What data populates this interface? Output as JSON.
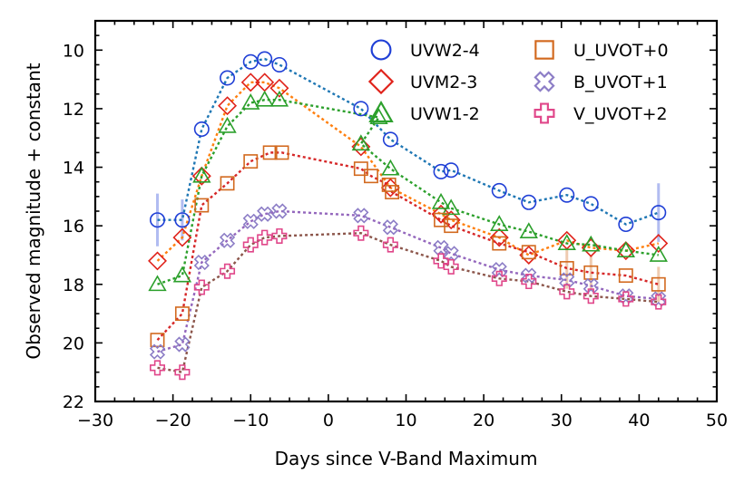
{
  "chart_data": {
    "type": "scatter",
    "title": "",
    "xlabel": "Days since V-Band Maximum",
    "ylabel": "Observed magnitude + constant",
    "xlim": [
      -30,
      50
    ],
    "ylim": [
      22,
      9
    ],
    "y_inverted": true,
    "grid": false,
    "legend_position": "top-right",
    "x_ticks": [
      "−30",
      "−20",
      "−10",
      "0",
      "10",
      "20",
      "30",
      "40",
      "50"
    ],
    "x_tick_values": [
      -30,
      -20,
      -10,
      0,
      10,
      20,
      30,
      40,
      50
    ],
    "y_ticks": [
      "10",
      "12",
      "14",
      "16",
      "18",
      "20",
      "22"
    ],
    "y_tick_values": [
      10,
      12,
      14,
      16,
      18,
      20,
      22
    ],
    "series": [
      {
        "name": "UVW2-4",
        "marker": "circle",
        "color": "#1f3fd6",
        "line_color": "#1f77b4",
        "x": [
          -22.0,
          -18.8,
          -16.3,
          -13.0,
          -10.0,
          -8.2,
          -6.3,
          4.2,
          8.0,
          14.5,
          15.8,
          22.0,
          25.8,
          30.7,
          33.8,
          38.3,
          42.5
        ],
        "y": [
          15.8,
          15.8,
          12.7,
          10.95,
          10.4,
          10.3,
          10.5,
          12.0,
          13.05,
          14.15,
          14.1,
          14.8,
          15.2,
          14.95,
          15.25,
          15.95,
          15.55
        ],
        "err": [
          0.9,
          0.7,
          0,
          0,
          0,
          0,
          0,
          0,
          0,
          0,
          0,
          0,
          0,
          0,
          0,
          0,
          1.0
        ]
      },
      {
        "name": "UVM2-3",
        "marker": "diamond",
        "color": "#e0221a",
        "line_color": "#ff7f0e",
        "x": [
          -22.0,
          -18.8,
          -16.3,
          -13.0,
          -10.0,
          -8.2,
          -6.3,
          4.2,
          8.0,
          14.5,
          15.8,
          22.0,
          25.8,
          30.7,
          33.8,
          38.3,
          42.5
        ],
        "y": [
          17.2,
          16.4,
          14.3,
          11.9,
          11.1,
          11.1,
          11.3,
          13.3,
          14.7,
          15.6,
          15.8,
          16.4,
          17.0,
          16.5,
          16.75,
          16.85,
          16.6
        ],
        "err": [
          0,
          0,
          0,
          0,
          0,
          0,
          0,
          0,
          0,
          0,
          0,
          0,
          0,
          0,
          0,
          0,
          0
        ]
      },
      {
        "name": "UVW1-2",
        "marker": "triangle",
        "color": "#2ca02c",
        "line_color": "#2ca02c",
        "x": [
          -22.0,
          -18.8,
          -16.3,
          -13.0,
          -10.0,
          -8.2,
          -6.3,
          6.5,
          4.2,
          8.0,
          14.5,
          15.8,
          22.0,
          25.8,
          30.7,
          33.8,
          38.3,
          42.5
        ],
        "y": [
          18.0,
          17.7,
          14.3,
          12.6,
          11.8,
          11.7,
          11.7,
          12.3,
          13.2,
          14.05,
          15.2,
          15.4,
          15.95,
          16.2,
          16.6,
          16.65,
          16.85,
          17.0
        ],
        "err": [
          0,
          0,
          0,
          0,
          0,
          0,
          0,
          0,
          0,
          0,
          0,
          0,
          0,
          0,
          0,
          0,
          0,
          0
        ]
      },
      {
        "name": "U_UVOT+0",
        "marker": "square",
        "color": "#d2691e",
        "line_color": "#d62728",
        "x": [
          -22.0,
          -18.8,
          -16.3,
          -13.0,
          -10.0,
          -7.5,
          -6.0,
          4.2,
          5.5,
          7.8,
          8.2,
          14.5,
          15.8,
          22.0,
          25.8,
          30.7,
          33.8,
          38.3,
          42.5
        ],
        "y": [
          19.9,
          19.0,
          15.3,
          14.55,
          13.8,
          13.5,
          13.5,
          14.05,
          14.3,
          14.6,
          14.85,
          15.8,
          16.0,
          16.6,
          16.9,
          17.45,
          17.6,
          17.7,
          18.0
        ],
        "err": [
          0,
          0,
          0,
          0,
          0,
          0,
          0,
          0,
          0,
          0,
          0,
          0,
          0,
          0,
          0,
          0.7,
          0.6,
          0,
          0.6
        ]
      },
      {
        "name": "B_UVOT+1",
        "marker": "x-cross",
        "color": "#8c7dc6",
        "line_color": "#9467bd",
        "x": [
          -22.0,
          -18.8,
          -16.3,
          -13.0,
          -10.0,
          -8.2,
          -6.3,
          4.2,
          8.0,
          14.5,
          15.8,
          22.0,
          25.8,
          30.7,
          33.8,
          38.3,
          42.5
        ],
        "y": [
          20.3,
          20.05,
          17.25,
          16.5,
          15.85,
          15.6,
          15.5,
          15.65,
          16.05,
          16.75,
          16.95,
          17.5,
          17.7,
          17.85,
          18.05,
          18.4,
          18.5
        ],
        "err": [
          0,
          0,
          0,
          0,
          0,
          0,
          0,
          0,
          0,
          0,
          0,
          0,
          0,
          0,
          0,
          0,
          0
        ]
      },
      {
        "name": "V_UVOT+2",
        "marker": "plus-cross",
        "color": "#e0478a",
        "line_color": "#8c564b",
        "x": [
          -22.0,
          -18.8,
          -16.3,
          -13.0,
          -10.0,
          -8.2,
          -6.3,
          4.2,
          8.0,
          14.5,
          15.8,
          22.0,
          25.8,
          30.7,
          33.8,
          38.3,
          42.5
        ],
        "y": [
          20.85,
          21.0,
          18.1,
          17.55,
          16.65,
          16.4,
          16.35,
          16.25,
          16.65,
          17.2,
          17.4,
          17.8,
          17.9,
          18.25,
          18.4,
          18.5,
          18.6
        ],
        "err": [
          0,
          0,
          0,
          0,
          0,
          0,
          0,
          0,
          0,
          0,
          0,
          0,
          0,
          0,
          0,
          0,
          0
        ]
      }
    ]
  }
}
